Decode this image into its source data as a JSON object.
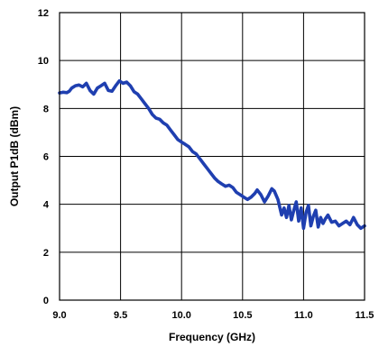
{
  "chart_data": {
    "type": "line",
    "title": "",
    "xlabel": "Frequency (GHz)",
    "ylabel": "Output P1dB (dBm)",
    "xlim": [
      9.0,
      11.5
    ],
    "ylim": [
      0,
      12
    ],
    "x_ticks": [
      9.0,
      9.5,
      10.0,
      10.5,
      11.0,
      11.5
    ],
    "x_tick_labels": [
      "9.0",
      "9.5",
      "10.0",
      "10.5",
      "11.0",
      "11.5"
    ],
    "y_ticks": [
      0,
      2,
      4,
      6,
      8,
      10,
      12
    ],
    "y_tick_labels": [
      "0",
      "2",
      "4",
      "6",
      "8",
      "10",
      "12"
    ],
    "grid": true,
    "legend": "none",
    "series_color": "#1f3fb0",
    "series": [
      {
        "x": [
          9.0,
          9.03,
          9.06,
          9.08,
          9.1,
          9.13,
          9.16,
          9.19,
          9.22,
          9.25,
          9.28,
          9.31,
          9.34,
          9.37,
          9.4,
          9.43,
          9.46,
          9.49,
          9.52,
          9.55,
          9.58,
          9.61,
          9.64,
          9.67,
          9.7,
          9.73,
          9.76,
          9.79,
          9.82,
          9.85,
          9.88,
          9.91,
          9.94,
          9.97,
          10.0,
          10.03,
          10.06,
          10.09,
          10.12,
          10.15,
          10.18,
          10.21,
          10.24,
          10.27,
          10.3,
          10.33,
          10.36,
          10.39,
          10.42,
          10.45,
          10.48,
          10.51,
          10.54,
          10.57,
          10.6,
          10.62,
          10.65,
          10.68,
          10.71,
          10.74,
          10.76,
          10.79,
          10.82,
          10.84,
          10.86,
          10.88,
          10.9,
          10.92,
          10.94,
          10.96,
          10.98,
          11.0,
          11.02,
          11.04,
          11.06,
          11.08,
          11.1,
          11.12,
          11.14,
          11.16,
          11.18,
          11.2,
          11.23,
          11.26,
          11.29,
          11.32,
          11.35,
          11.38,
          11.41,
          11.44,
          11.47,
          11.5
        ],
        "y": [
          8.65,
          8.68,
          8.66,
          8.72,
          8.85,
          8.95,
          8.98,
          8.9,
          9.05,
          8.75,
          8.6,
          8.85,
          8.95,
          9.05,
          8.75,
          8.72,
          8.95,
          9.15,
          9.05,
          9.1,
          8.95,
          8.7,
          8.6,
          8.4,
          8.2,
          8.0,
          7.75,
          7.6,
          7.55,
          7.4,
          7.3,
          7.1,
          6.9,
          6.7,
          6.6,
          6.5,
          6.4,
          6.2,
          6.1,
          5.9,
          5.7,
          5.5,
          5.3,
          5.1,
          4.95,
          4.85,
          4.75,
          4.8,
          4.7,
          4.5,
          4.4,
          4.3,
          4.2,
          4.3,
          4.45,
          4.6,
          4.4,
          4.1,
          4.35,
          4.65,
          4.55,
          4.2,
          3.55,
          3.85,
          3.45,
          3.95,
          3.35,
          3.75,
          4.1,
          3.3,
          3.85,
          3.0,
          3.65,
          3.95,
          3.1,
          3.5,
          3.75,
          3.05,
          3.45,
          3.2,
          3.4,
          3.55,
          3.25,
          3.3,
          3.1,
          3.2,
          3.3,
          3.15,
          3.45,
          3.15,
          3.0,
          3.1
        ]
      }
    ]
  }
}
